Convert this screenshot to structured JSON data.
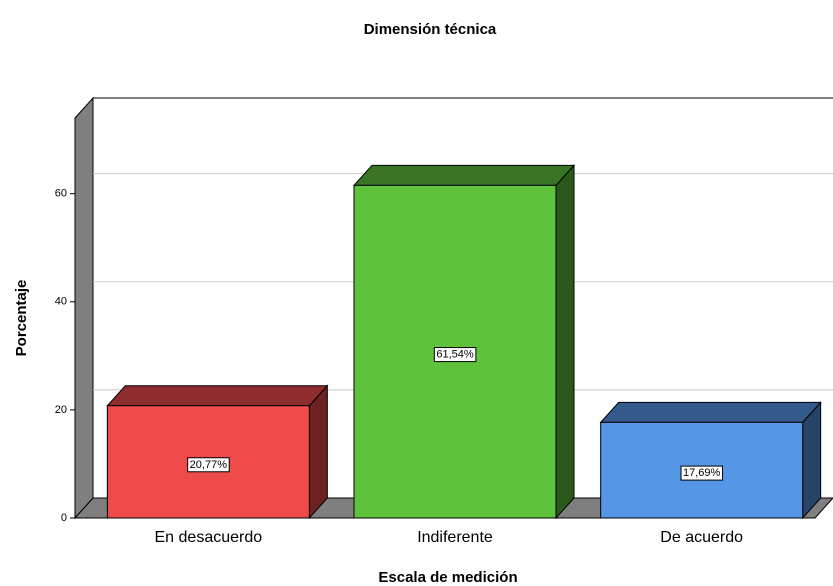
{
  "chart_data": {
    "type": "bar3d",
    "title": "Dimensión técnica",
    "x_label": "Escala de medición",
    "y_label": "Porcentaje",
    "categories": [
      "En desacuerdo",
      "Indiferente",
      "De acuerdo"
    ],
    "values": [
      20.77,
      61.54,
      17.69
    ],
    "value_labels": [
      "20,77%",
      "61,54%",
      "17,69%"
    ],
    "colors": [
      "#ef4b4b",
      "#5ec23a",
      "#5596e6"
    ],
    "ylim": [
      0,
      74
    ],
    "yticks": [
      0,
      20,
      40,
      60
    ],
    "grid": true
  }
}
